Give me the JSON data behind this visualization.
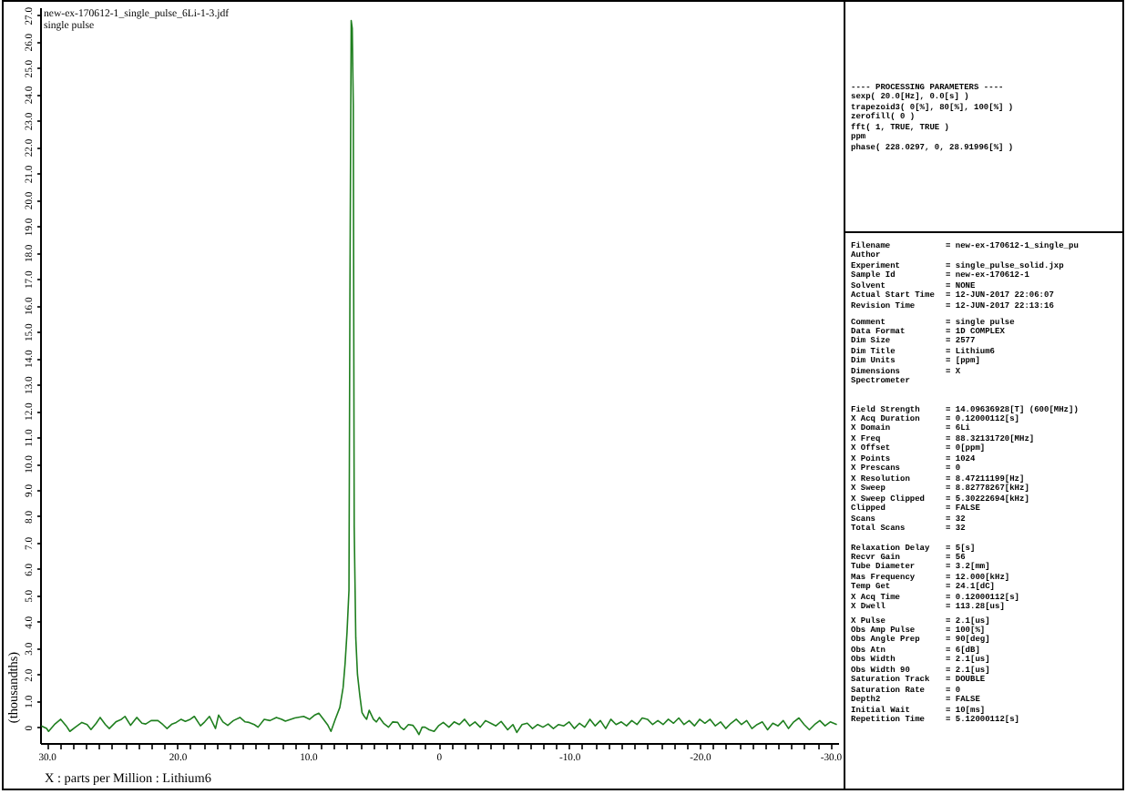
{
  "chart_data": {
    "type": "line",
    "title": "new-ex-170612-1_single_pulse_6Li-1-3.jdf",
    "subtitle": "single pulse",
    "xlabel": "X : parts per Million : Lithium6",
    "ylabel": "(thousandths)",
    "xlim": [
      30.5,
      -30.6
    ],
    "xticks": [
      {
        "value": 30,
        "label": "30.0"
      },
      {
        "value": 29,
        "label": null
      },
      {
        "value": 28,
        "label": null
      },
      {
        "value": 27,
        "label": null
      },
      {
        "value": 26,
        "label": null
      },
      {
        "value": 25,
        "label": null
      },
      {
        "value": 24,
        "label": null
      },
      {
        "value": 23,
        "label": null
      },
      {
        "value": 22,
        "label": null
      },
      {
        "value": 21,
        "label": null
      },
      {
        "value": 20,
        "label": "20.0"
      },
      {
        "value": 19,
        "label": null
      },
      {
        "value": 18,
        "label": null
      },
      {
        "value": 17,
        "label": null
      },
      {
        "value": 16,
        "label": null
      },
      {
        "value": 15,
        "label": null
      },
      {
        "value": 14,
        "label": null
      },
      {
        "value": 13,
        "label": null
      },
      {
        "value": 12,
        "label": null
      },
      {
        "value": 11,
        "label": null
      },
      {
        "value": 10,
        "label": "10.0"
      },
      {
        "value": 9,
        "label": null
      },
      {
        "value": 8,
        "label": null
      },
      {
        "value": 7,
        "label": null
      },
      {
        "value": 6,
        "label": null
      },
      {
        "value": 5,
        "label": null
      },
      {
        "value": 4,
        "label": null
      },
      {
        "value": 3,
        "label": null
      },
      {
        "value": 2,
        "label": null
      },
      {
        "value": 1,
        "label": null
      },
      0,
      {
        "value": -1,
        "label": null
      },
      {
        "value": -2,
        "label": null
      },
      {
        "value": -3,
        "label": null
      },
      {
        "value": -4,
        "label": null
      },
      {
        "value": -5,
        "label": null
      },
      {
        "value": -6,
        "label": null
      },
      {
        "value": -7,
        "label": null
      },
      {
        "value": -8,
        "label": null
      },
      {
        "value": -9,
        "label": null
      },
      {
        "value": -10,
        "label": "-10.0"
      },
      {
        "value": -11,
        "label": null
      },
      {
        "value": -12,
        "label": null
      },
      {
        "value": -13,
        "label": null
      },
      {
        "value": -14,
        "label": null
      },
      {
        "value": -15,
        "label": null
      },
      {
        "value": -16,
        "label": null
      },
      {
        "value": -17,
        "label": null
      },
      {
        "value": -18,
        "label": null
      },
      {
        "value": -19,
        "label": null
      },
      {
        "value": -20,
        "label": "-20.0"
      },
      {
        "value": -21,
        "label": null
      },
      {
        "value": -22,
        "label": null
      },
      {
        "value": -23,
        "label": null
      },
      {
        "value": -24,
        "label": null
      },
      {
        "value": -25,
        "label": null
      },
      {
        "value": -26,
        "label": null
      },
      {
        "value": -27,
        "label": null
      },
      {
        "value": -28,
        "label": null
      },
      {
        "value": -29,
        "label": null
      },
      {
        "value": -30,
        "label": "-30.0"
      }
    ],
    "ylim": [
      -0.6,
      27.3
    ],
    "yticks": [
      0,
      {
        "value": 1,
        "label": "1.0"
      },
      {
        "value": 2,
        "label": "2.0"
      },
      {
        "value": 3,
        "label": "3.0"
      },
      {
        "value": 4,
        "label": "4.0"
      },
      {
        "value": 5,
        "label": "5.0"
      },
      {
        "value": 6,
        "label": "6.0"
      },
      {
        "value": 7,
        "label": "7.0"
      },
      {
        "value": 8,
        "label": "8.0"
      },
      {
        "value": 9,
        "label": "9.0"
      },
      {
        "value": 10,
        "label": "10.0"
      },
      {
        "value": 11,
        "label": "11.0"
      },
      {
        "value": 12,
        "label": "12.0"
      },
      {
        "value": 13,
        "label": "13.0"
      },
      {
        "value": 14,
        "label": "14.0"
      },
      {
        "value": 15,
        "label": "15.0"
      },
      {
        "value": 16,
        "label": "16.0"
      },
      {
        "value": 17,
        "label": "17.0"
      },
      {
        "value": 18,
        "label": "18.0"
      },
      {
        "value": 19,
        "label": "19.0"
      },
      {
        "value": 20,
        "label": "20.0"
      },
      {
        "value": 21,
        "label": "21.0"
      },
      {
        "value": 22,
        "label": "22.0"
      },
      {
        "value": 23,
        "label": "23.0"
      },
      {
        "value": 24,
        "label": "24.0"
      },
      {
        "value": 25,
        "label": "25.0"
      },
      {
        "value": 26,
        "label": "26.0"
      },
      {
        "value": 27,
        "label": "27.0"
      }
    ],
    "x": [
      30.4,
      30.0,
      29.85,
      29.4,
      28.92,
      28.5,
      28.22,
      27.8,
      27.3,
      26.9,
      26.6,
      26.2,
      25.9,
      25.5,
      25.2,
      24.7,
      24.27,
      24.0,
      23.57,
      23.1,
      22.7,
      22.41,
      22.0,
      21.48,
      21.1,
      20.78,
      20.4,
      20.08,
      19.7,
      19.38,
      19.0,
      18.69,
      18.22,
      17.9,
      17.53,
      17.07,
      16.83,
      16.5,
      16.13,
      15.7,
      15.2,
      14.8,
      14.5,
      14.1,
      13.81,
      13.34,
      12.9,
      12.41,
      12.0,
      11.72,
      11.0,
      10.32,
      9.86,
      9.5,
      9.16,
      8.8,
      8.46,
      8.23,
      7.9,
      7.55,
      7.3,
      7.15,
      7.0,
      6.85,
      6.78,
      6.68,
      6.6,
      6.52,
      6.45,
      6.33,
      6.2,
      6.02,
      5.85,
      5.68,
      5.5,
      5.3,
      4.98,
      4.75,
      4.52,
      4.2,
      3.82,
      3.5,
      3.12,
      2.9,
      2.65,
      2.3,
      1.96,
      1.7,
      1.49,
      1.25,
      1.03,
      0.7,
      0.33,
      0.0,
      -0.37,
      -0.8,
      -1.2,
      -1.6,
      -2.0,
      -2.4,
      -2.8,
      -3.2,
      -3.6,
      -4.0,
      -4.4,
      -4.8,
      -5.3,
      -5.7,
      -6.0,
      -6.4,
      -6.8,
      -7.2,
      -7.6,
      -8.0,
      -8.4,
      -8.8,
      -9.2,
      -9.6,
      -10.0,
      -10.4,
      -10.8,
      -11.2,
      -11.6,
      -12.0,
      -12.4,
      -12.8,
      -13.2,
      -13.6,
      -14.0,
      -14.4,
      -14.8,
      -15.2,
      -15.6,
      -16.0,
      -16.4,
      -16.8,
      -17.2,
      -17.6,
      -18.0,
      -18.4,
      -18.8,
      -19.2,
      -19.6,
      -20.0,
      -20.4,
      -20.8,
      -21.2,
      -21.6,
      -22.0,
      -22.4,
      -22.8,
      -23.2,
      -23.6,
      -24.0,
      -24.4,
      -24.8,
      -25.2,
      -25.6,
      -26.0,
      -26.4,
      -26.8,
      -27.2,
      -27.6,
      -28.0,
      -28.4,
      -28.8,
      -29.2,
      -29.6,
      -30.0,
      -30.5
    ],
    "series": [
      {
        "color": "#1f7f1f",
        "values": [
          0.05,
          -0.05,
          -0.16,
          0.1,
          0.3,
          0.05,
          -0.16,
          0.0,
          0.18,
          0.1,
          -0.09,
          0.15,
          0.37,
          0.1,
          -0.05,
          0.2,
          0.3,
          0.41,
          0.07,
          0.37,
          0.15,
          0.12,
          0.25,
          0.25,
          0.1,
          -0.05,
          0.12,
          0.18,
          0.3,
          0.22,
          0.3,
          0.41,
          0.05,
          0.2,
          0.41,
          -0.05,
          0.46,
          0.2,
          0.07,
          0.25,
          0.37,
          0.2,
          0.18,
          0.1,
          0.0,
          0.3,
          0.25,
          0.37,
          0.3,
          0.23,
          0.35,
          0.41,
          0.3,
          0.45,
          0.53,
          0.3,
          0.07,
          -0.16,
          0.3,
          0.75,
          1.5,
          2.4,
          3.6,
          5.2,
          16.2,
          26.8,
          26.5,
          23.6,
          7.6,
          3.4,
          2.0,
          1.2,
          0.55,
          0.41,
          0.3,
          0.64,
          0.3,
          0.2,
          0.37,
          0.15,
          0.0,
          0.2,
          0.18,
          0.0,
          -0.09,
          0.1,
          0.07,
          -0.1,
          -0.28,
          0.0,
          0.0,
          -0.1,
          -0.16,
          0.05,
          0.18,
          0.0,
          0.2,
          0.1,
          0.3,
          0.05,
          0.2,
          0.0,
          0.25,
          0.15,
          0.05,
          0.22,
          -0.1,
          0.1,
          -0.2,
          0.1,
          0.15,
          -0.05,
          0.1,
          0.0,
          0.12,
          -0.05,
          0.1,
          0.05,
          0.2,
          -0.05,
          0.15,
          0.0,
          0.3,
          0.05,
          0.25,
          -0.05,
          0.3,
          0.1,
          0.2,
          0.05,
          0.25,
          0.1,
          0.35,
          0.3,
          0.1,
          0.25,
          0.1,
          0.3,
          0.15,
          0.35,
          0.1,
          0.25,
          0.05,
          0.3,
          0.15,
          0.3,
          0.05,
          0.2,
          -0.05,
          0.15,
          0.3,
          0.1,
          0.25,
          -0.05,
          0.1,
          0.2,
          -0.1,
          0.15,
          0.05,
          0.25,
          -0.05,
          0.2,
          0.35,
          0.1,
          -0.1,
          0.1,
          0.25,
          0.05,
          0.2,
          0.1
        ]
      }
    ],
    "annotations": [
      "---- PROCESSING PARAMETERS ----\nsexp( 20.0[Hz], 0.0[s] )\ntrapezoid3( 0[%], 80[%], 100[%] )\nzerofill( 0 )\nfft( 1, TRUE, TRUE )\nppm\nphase( 228.0297, 0, 28.91996[%] )",
      "Filename = new-ex-170612-1_single_pu\nAuthor\nExperiment = single_pulse_solid.jxp\nSample Id = new-ex-170612-1\nSolvent = NONE\nActual Start Time = 12-JUN-2017 22:06:07\nRevision Time = 12-JUN-2017 22:13:16",
      "Comment = single pulse\nData Format = 1D COMPLEX\nDim Size = 2577\nDim Title = Lithium6\nDim Units = [ppm]\nDimensions = X\nSpectrometer",
      "Field Strength = 14.09636928[T] (600[MHz])\nX Acq Duration = 0.12000112[s]\nX Domain = 6Li\nX Freq = 88.32131720[MHz]\nX Offset = 0[ppm]\nX Points = 1024\nX Prescans = 0\nX Resolution = 8.47211199[Hz]\nX Sweep = 8.82778267[kHz]\nX Sweep Clipped = 5.30222694[kHz]\nClipped = FALSE\nScans = 32\nTotal Scans = 32",
      "Relaxation Delay = 5[s]\nRecvr Gain = 56\nTube Diameter = 3.2[mm]\nMas Frequency = 12.000[kHz]\nTemp Get = 24.1[dC]\nX Acq Time = 0.12000112[s]\nX Dwell = 113.28[us]",
      "X Pulse = 2.1[us]\nObs Amp Pulse = 100[%]\nObs Angle Prep = 90[deg]\nObs Atn = 6[dB]\nObs Width = 2.1[us]\nObs Width 90 = 2.1[us]\nSaturation Track = DOUBLE\nSaturation Rate = 0\nDepth2 = FALSE\nInitial Wait = 10[ms]\nRepetition Time = 5.12000112[s]"
    ]
  }
}
